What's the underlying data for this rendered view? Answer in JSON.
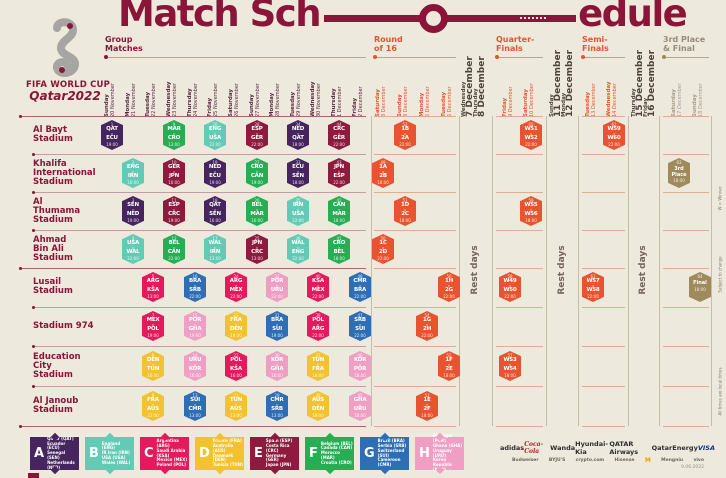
{
  "title": {
    "part1": "Match Sch",
    "part2": "edule"
  },
  "logo": {
    "line1": "FIFA WORLD CUP",
    "line2": "Qatar2022"
  },
  "sections": [
    {
      "lines": "Group\nMatches",
      "tone": "group"
    },
    {
      "lines": "Round\nof 16",
      "tone": "ko"
    },
    {
      "lines": "Quarter-\nFinals",
      "tone": "ko"
    },
    {
      "lines": "Semi-\nFinals",
      "tone": "ko"
    },
    {
      "lines": "3rd Place\n& Final",
      "tone": "final"
    }
  ],
  "columns": [
    {
      "day": "Sunday",
      "date": "20 November",
      "tone": "group"
    },
    {
      "day": "Monday",
      "date": "21 November",
      "tone": "group"
    },
    {
      "day": "Tuesday",
      "date": "22 November",
      "tone": "group"
    },
    {
      "day": "Wednesday",
      "date": "23 November",
      "tone": "group"
    },
    {
      "day": "Thursday",
      "date": "24 November",
      "tone": "group"
    },
    {
      "day": "Friday",
      "date": "25 November",
      "tone": "group"
    },
    {
      "day": "Saturday",
      "date": "26 November",
      "tone": "group"
    },
    {
      "day": "Sunday",
      "date": "27 November",
      "tone": "group"
    },
    {
      "day": "Monday",
      "date": "28 November",
      "tone": "group"
    },
    {
      "day": "Tuesday",
      "date": "29 November",
      "tone": "group"
    },
    {
      "day": "Wednesday",
      "date": "30 November",
      "tone": "group"
    },
    {
      "day": "Thursday",
      "date": "1 December",
      "tone": "group"
    },
    {
      "day": "Friday",
      "date": "2 December",
      "tone": "group"
    },
    {
      "day": "Saturday",
      "date": "3 December",
      "tone": "ko"
    },
    {
      "day": "Sunday",
      "date": "4 December",
      "tone": "ko"
    },
    {
      "day": "Monday",
      "date": "5 December",
      "tone": "ko"
    },
    {
      "day": "Tuesday",
      "date": "6 December",
      "tone": "ko"
    },
    {
      "day": "Wednesday",
      "date": "7 December",
      "tone": "rest"
    },
    {
      "day": "Thursday",
      "date": "8 December",
      "tone": "rest"
    },
    {
      "day": "Friday",
      "date": "9 December",
      "tone": "ko"
    },
    {
      "day": "Saturday",
      "date": "10 December",
      "tone": "ko"
    },
    {
      "day": "Sunday",
      "date": "11 December",
      "tone": "rest"
    },
    {
      "day": "Monday",
      "date": "12 December",
      "tone": "rest"
    },
    {
      "day": "Tuesday",
      "date": "13 December",
      "tone": "ko"
    },
    {
      "day": "Wednesday",
      "date": "14 December",
      "tone": "ko"
    },
    {
      "day": "Thursday",
      "date": "15 December",
      "tone": "rest"
    },
    {
      "day": "Friday",
      "date": "16 December",
      "tone": "rest"
    },
    {
      "day": "Saturday",
      "date": "17 December",
      "tone": "final"
    },
    {
      "day": "Sunday",
      "date": "18 December",
      "tone": "final"
    }
  ],
  "stadiums": [
    "Al Bayt\nStadium",
    "Khalifa\nInternational\nStadium",
    "Al\nThumama\nStadium",
    "Ahmad\nBin Ali\nStadium",
    "Lusail\nStadium",
    "Stadium 974",
    "Education\nCity\nStadium",
    "Al Janoub\nStadium"
  ],
  "group_colors": {
    "A": "#46245E",
    "B": "#63CBB5",
    "C": "#E41A5C",
    "D": "#F2C230",
    "E": "#8E1A3D",
    "F": "#27AE54",
    "G": "#2E6EB5",
    "H": "#EF9FC4",
    "KO": "#E8542F",
    "GOLD": "#9F8A5C"
  },
  "matches": [
    {
      "r": 0,
      "c": 0,
      "g": "A",
      "n": 1,
      "a": "QAT",
      "b": "ECU",
      "t": "19:00"
    },
    {
      "r": 0,
      "c": 3,
      "g": "F",
      "n": 9,
      "a": "MAR",
      "b": "CRO",
      "t": "13:00"
    },
    {
      "r": 0,
      "c": 5,
      "g": "B",
      "n": 20,
      "a": "ENG",
      "b": "USA",
      "t": "22:00"
    },
    {
      "r": 0,
      "c": 7,
      "g": "E",
      "n": 28,
      "a": "ESP",
      "b": "GER",
      "t": "22:00"
    },
    {
      "r": 0,
      "c": 9,
      "g": "A",
      "n": 34,
      "a": "NED",
      "b": "QAT",
      "t": "18:00"
    },
    {
      "r": 0,
      "c": 11,
      "g": "E",
      "n": 44,
      "a": "CRC",
      "b": "GER",
      "t": "22:00"
    },
    {
      "r": 0,
      "c": 14,
      "g": "KO",
      "n": 52,
      "a": "1B",
      "b": "2A",
      "t": "22:00"
    },
    {
      "r": 0,
      "c": 20,
      "g": "KO",
      "n": 60,
      "a": "W51",
      "b": "W52",
      "t": "22:00"
    },
    {
      "r": 0,
      "c": 24,
      "g": "KO",
      "n": 62,
      "a": "W59",
      "b": "W60",
      "t": "22:00"
    },
    {
      "r": 1,
      "c": 1,
      "g": "B",
      "n": 2,
      "a": "ENG",
      "b": "IRN",
      "t": "16:00"
    },
    {
      "r": 1,
      "c": 3,
      "g": "E",
      "n": 10,
      "a": "GER",
      "b": "JPN",
      "t": "16:00"
    },
    {
      "r": 1,
      "c": 5,
      "g": "A",
      "n": 19,
      "a": "NED",
      "b": "ECU",
      "t": "19:00"
    },
    {
      "r": 1,
      "c": 7,
      "g": "F",
      "n": 27,
      "a": "CRO",
      "b": "CAN",
      "t": "19:00"
    },
    {
      "r": 1,
      "c": 9,
      "g": "A",
      "n": 33,
      "a": "ECU",
      "b": "SEN",
      "t": "18:00"
    },
    {
      "r": 1,
      "c": 11,
      "g": "E",
      "n": 43,
      "a": "JPN",
      "b": "ESP",
      "t": "22:00"
    },
    {
      "r": 1,
      "c": 13,
      "g": "KO",
      "n": 49,
      "a": "1A",
      "b": "2B",
      "t": "18:00"
    },
    {
      "r": 1,
      "c": 27,
      "g": "GOLD",
      "n": 63,
      "label": "3rd\nPlace",
      "t": "18:00"
    },
    {
      "r": 2,
      "c": 1,
      "g": "A",
      "n": 3,
      "a": "SEN",
      "b": "NED",
      "t": "19:00"
    },
    {
      "r": 2,
      "c": 3,
      "g": "E",
      "n": 11,
      "a": "ESP",
      "b": "CRC",
      "t": "19:00"
    },
    {
      "r": 2,
      "c": 5,
      "g": "A",
      "n": 18,
      "a": "QAT",
      "b": "SEN",
      "t": "16:00"
    },
    {
      "r": 2,
      "c": 7,
      "g": "F",
      "n": 26,
      "a": "BEL",
      "b": "MAR",
      "t": "16:00"
    },
    {
      "r": 2,
      "c": 9,
      "g": "B",
      "n": 35,
      "a": "IRN",
      "b": "USA",
      "t": "22:00"
    },
    {
      "r": 2,
      "c": 11,
      "g": "F",
      "n": 42,
      "a": "CAN",
      "b": "MAR",
      "t": "18:00"
    },
    {
      "r": 2,
      "c": 14,
      "g": "KO",
      "n": 51,
      "a": "1D",
      "b": "2C",
      "t": "18:00"
    },
    {
      "r": 2,
      "c": 20,
      "g": "KO",
      "n": 59,
      "a": "W55",
      "b": "W56",
      "t": "18:00"
    },
    {
      "r": 3,
      "c": 1,
      "g": "B",
      "n": 4,
      "a": "USA",
      "b": "WAL",
      "t": "22:00"
    },
    {
      "r": 3,
      "c": 3,
      "g": "F",
      "n": 12,
      "a": "BEL",
      "b": "CAN",
      "t": "22:00"
    },
    {
      "r": 3,
      "c": 5,
      "g": "B",
      "n": 17,
      "a": "WAL",
      "b": "IRN",
      "t": "13:00"
    },
    {
      "r": 3,
      "c": 7,
      "g": "E",
      "n": 25,
      "a": "JPN",
      "b": "CRC",
      "t": "13:00"
    },
    {
      "r": 3,
      "c": 9,
      "g": "B",
      "n": 36,
      "a": "WAL",
      "b": "ENG",
      "t": "22:00"
    },
    {
      "r": 3,
      "c": 11,
      "g": "F",
      "n": 41,
      "a": "CRO",
      "b": "BEL",
      "t": "18:00"
    },
    {
      "r": 3,
      "c": 13,
      "g": "KO",
      "n": 50,
      "a": "1C",
      "b": "2D",
      "t": "22:00"
    },
    {
      "r": 4,
      "c": 2,
      "g": "C",
      "n": 5,
      "a": "ARG",
      "b": "KSA",
      "t": "13:00"
    },
    {
      "r": 4,
      "c": 4,
      "g": "G",
      "n": 16,
      "a": "BRA",
      "b": "SRB",
      "t": "22:00"
    },
    {
      "r": 4,
      "c": 6,
      "g": "C",
      "n": 24,
      "a": "ARG",
      "b": "MEX",
      "t": "22:00"
    },
    {
      "r": 4,
      "c": 8,
      "g": "H",
      "n": 32,
      "a": "POR",
      "b": "URU",
      "t": "22:00"
    },
    {
      "r": 4,
      "c": 10,
      "g": "C",
      "n": 40,
      "a": "KSA",
      "b": "MEX",
      "t": "22:00"
    },
    {
      "r": 4,
      "c": 12,
      "g": "G",
      "n": 48,
      "a": "CMR",
      "b": "BRA",
      "t": "22:00"
    },
    {
      "r": 4,
      "c": 16,
      "g": "KO",
      "n": 56,
      "a": "1H",
      "b": "2G",
      "t": "22:00"
    },
    {
      "r": 4,
      "c": 19,
      "g": "KO",
      "n": 58,
      "a": "W49",
      "b": "W50",
      "t": "22:00"
    },
    {
      "r": 4,
      "c": 23,
      "g": "KO",
      "n": 61,
      "a": "W57",
      "b": "W58",
      "t": "22:00"
    },
    {
      "r": 4,
      "c": 28,
      "g": "GOLD",
      "n": 64,
      "label": "Final",
      "t": "18:00"
    },
    {
      "r": 5,
      "c": 2,
      "g": "C",
      "n": 7,
      "a": "MEX",
      "b": "POL",
      "t": "19:00"
    },
    {
      "r": 5,
      "c": 4,
      "g": "H",
      "n": 15,
      "a": "POR",
      "b": "GHA",
      "t": "19:00"
    },
    {
      "r": 5,
      "c": 6,
      "g": "D",
      "n": 23,
      "a": "FRA",
      "b": "DEN",
      "t": "19:00"
    },
    {
      "r": 5,
      "c": 8,
      "g": "G",
      "n": 31,
      "a": "BRA",
      "b": "SUI",
      "t": "19:00"
    },
    {
      "r": 5,
      "c": 10,
      "g": "C",
      "n": 39,
      "a": "POL",
      "b": "ARG",
      "t": "22:00"
    },
    {
      "r": 5,
      "c": 12,
      "g": "G",
      "n": 47,
      "a": "SRB",
      "b": "SUI",
      "t": "22:00"
    },
    {
      "r": 5,
      "c": 15,
      "g": "KO",
      "n": 54,
      "a": "1G",
      "b": "2H",
      "t": "22:00"
    },
    {
      "r": 6,
      "c": 2,
      "g": "D",
      "n": 6,
      "a": "DEN",
      "b": "TUN",
      "t": "16:00"
    },
    {
      "r": 6,
      "c": 4,
      "g": "H",
      "n": 14,
      "a": "URU",
      "b": "KOR",
      "t": "16:00"
    },
    {
      "r": 6,
      "c": 6,
      "g": "C",
      "n": 22,
      "a": "POL",
      "b": "KSA",
      "t": "16:00"
    },
    {
      "r": 6,
      "c": 8,
      "g": "H",
      "n": 30,
      "a": "KOR",
      "b": "GHA",
      "t": "16:00"
    },
    {
      "r": 6,
      "c": 10,
      "g": "D",
      "n": 37,
      "a": "TUN",
      "b": "FRA",
      "t": "18:00"
    },
    {
      "r": 6,
      "c": 12,
      "g": "H",
      "n": 46,
      "a": "KOR",
      "b": "POR",
      "t": "18:00"
    },
    {
      "r": 6,
      "c": 16,
      "g": "KO",
      "n": 55,
      "a": "1F",
      "b": "2E",
      "t": "18:00"
    },
    {
      "r": 6,
      "c": 19,
      "g": "KO",
      "n": 57,
      "a": "W53",
      "b": "W54",
      "t": "18:00"
    },
    {
      "r": 7,
      "c": 2,
      "g": "D",
      "n": 8,
      "a": "FRA",
      "b": "AUS",
      "t": "22:00"
    },
    {
      "r": 7,
      "c": 4,
      "g": "G",
      "n": 13,
      "a": "SUI",
      "b": "CMR",
      "t": "13:00"
    },
    {
      "r": 7,
      "c": 6,
      "g": "D",
      "n": 21,
      "a": "TUN",
      "b": "AUS",
      "t": "13:00"
    },
    {
      "r": 7,
      "c": 8,
      "g": "G",
      "n": 29,
      "a": "CMR",
      "b": "SRB",
      "t": "13:00"
    },
    {
      "r": 7,
      "c": 10,
      "g": "D",
      "n": 38,
      "a": "AUS",
      "b": "DEN",
      "t": "18:00"
    },
    {
      "r": 7,
      "c": 12,
      "g": "H",
      "n": 45,
      "a": "GHA",
      "b": "URU",
      "t": "18:00"
    },
    {
      "r": 7,
      "c": 15,
      "g": "KO",
      "n": 53,
      "a": "1E",
      "b": "2F",
      "t": "18:00"
    }
  ],
  "rest_label": "Rest days",
  "side_notes": [
    "W = Winner",
    "Subject to change",
    "All times are local times"
  ],
  "legend": [
    {
      "letter": "A",
      "color": "#46245E",
      "teams": "Qatar (QAT)\nEcuador (ECU)\nSenegal (SEN)\nNetherlands (NED)"
    },
    {
      "letter": "B",
      "color": "#63CBB5",
      "teams": "England (ENG)\nIR Iran (IRN)\nUSA (USA)\nWales (WAL)"
    },
    {
      "letter": "C",
      "color": "#E41A5C",
      "teams": "Argentina (ARG)\nSaudi Arabia (KSA)\nMexico (MEX)\nPoland (POL)"
    },
    {
      "letter": "D",
      "color": "#F2C230",
      "teams": "France (FRA)\nAustralia (AUS)\nDenmark (DEN)\nTunisia (TUN)"
    },
    {
      "letter": "E",
      "color": "#8E1A3D",
      "teams": "Spain (ESP)\nCosta Rica (CRC)\nGermany (GER)\nJapan (JPN)"
    },
    {
      "letter": "F",
      "color": "#27AE54",
      "teams": "Belgium (BEL)\nCanada (CAN)\nMorocco (MAR)\nCroatia (CRO)"
    },
    {
      "letter": "G",
      "color": "#2E6EB5",
      "teams": "Brazil (BRA)\nSerbia (SRB)\nSwitzerland (SUI)\nCameroon (CMR)"
    },
    {
      "letter": "H",
      "color": "#EF9FC4",
      "teams": "Portugal (POR)\nGhana (GHA)\nUruguay (URU)\nKorea Republic (KOR)"
    }
  ],
  "sponsors_row1": [
    "adidas",
    "Coca-Cola",
    "Wanda",
    "Hyundai-Kia",
    "QATAR Airways",
    "QatarEnergy",
    "VISA"
  ],
  "sponsors_row2": [
    "Budweiser",
    "BYJU'S",
    "crypto.com",
    "Hisense",
    "M",
    "Mengniu",
    "vivo"
  ],
  "footer_date": "9.06.2022"
}
